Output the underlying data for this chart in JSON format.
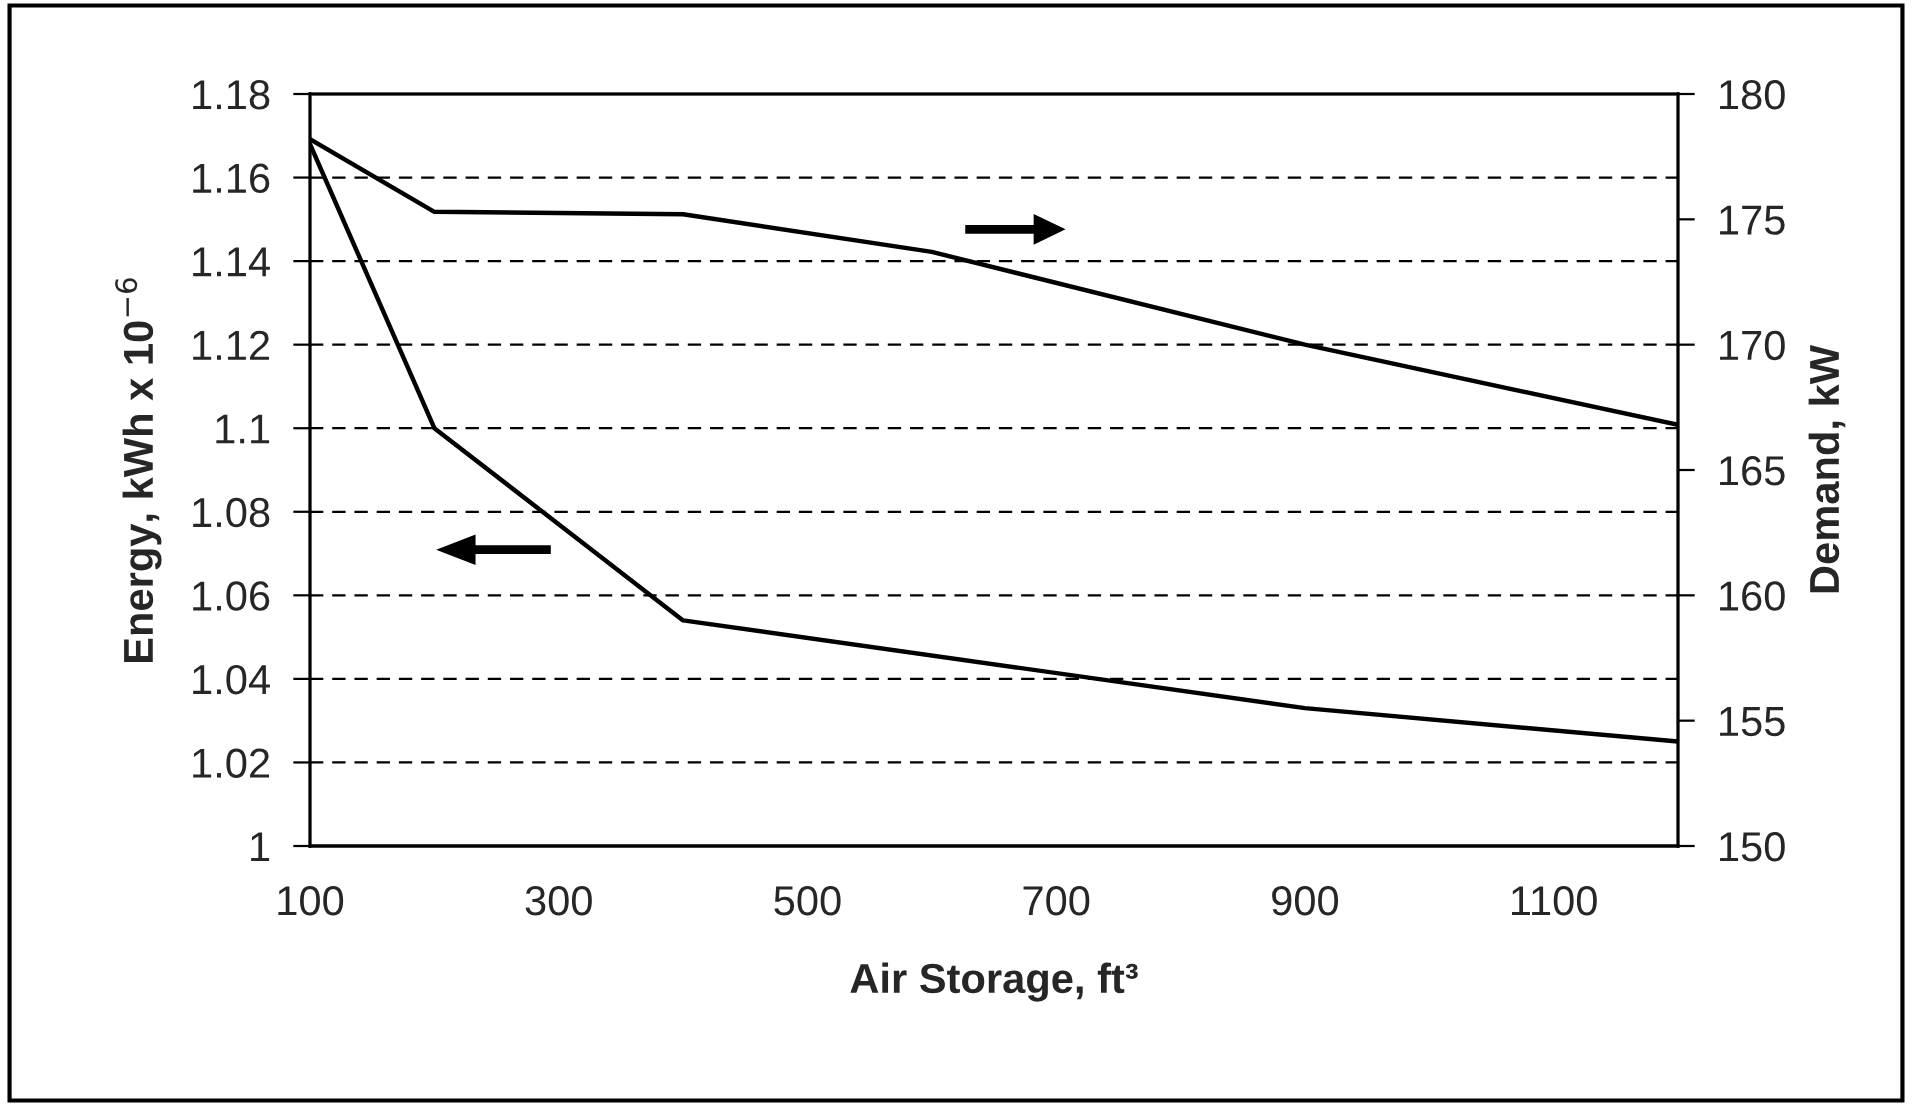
{
  "chart_data": {
    "type": "line",
    "xlabel": "Air Storage, ft³",
    "ylabel": "Energy, kWh x 10$^{−6}$",
    "y2label": "Demand, kW",
    "series": [
      {
        "color": "#000000",
        "x": [
          100,
          200,
          400,
          900,
          1200
        ],
        "values": [
          1.168,
          1.1,
          1.054,
          1.033,
          1.025
        ]
      },
      {
        "color": "#000000",
        "axis": "y2",
        "x": [
          100,
          200,
          400,
          600,
          900,
          1200
        ],
        "values": [
          178.2,
          175.3,
          175.2,
          173.7,
          170,
          166.8
        ]
      }
    ],
    "xlim": [
      100,
      1200
    ],
    "xticks": [
      100,
      300,
      500,
      700,
      900,
      1100
    ],
    "ylim": [
      1,
      1.18
    ],
    "yticks": [
      {
        "value": 1,
        "label": "1"
      },
      1.02,
      1.04,
      1.06,
      1.08,
      {
        "value": 1.1,
        "label": "1.1"
      },
      1.12,
      1.14,
      1.16,
      1.18
    ],
    "y2lim": [
      150,
      180
    ],
    "y2ticks": [
      150,
      155,
      160,
      165,
      170,
      175,
      180
    ],
    "grid": "y",
    "line_style": "solid",
    "marker": "none",
    "legend": false
  }
}
